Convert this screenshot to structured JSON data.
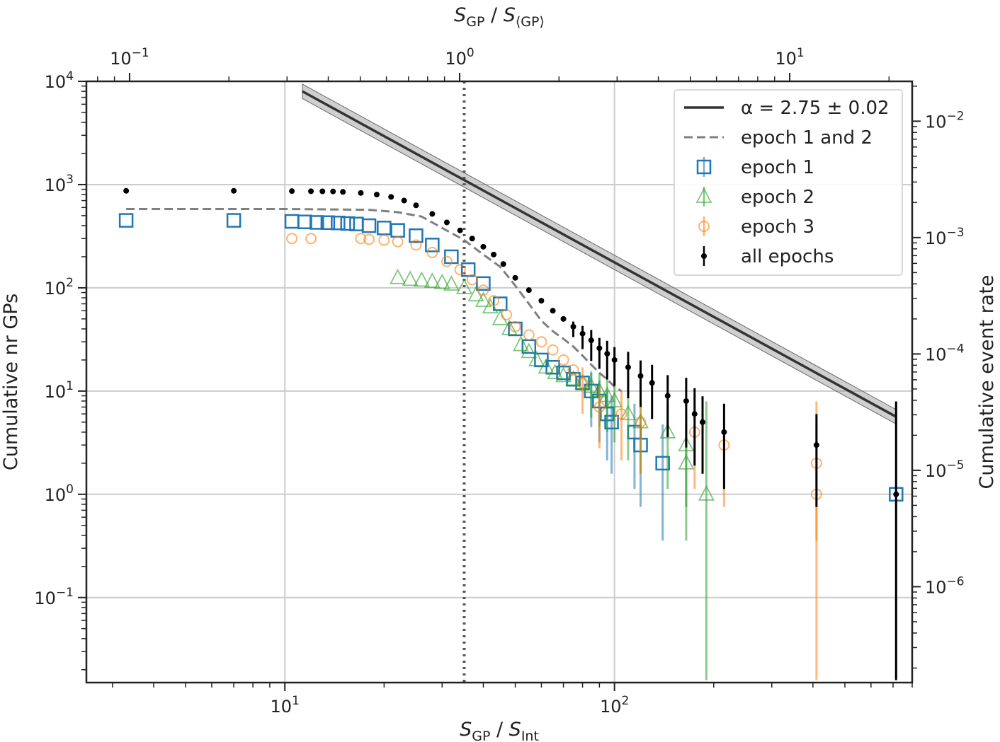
{
  "chart_data": {
    "type": "scatter",
    "scales": {
      "x": "log",
      "y": "log",
      "x_top": "log",
      "y_right": "log"
    },
    "xlabel": "S_GP / S_Int",
    "xlabel_parts": {
      "base": "S",
      "sub1": "GP",
      "sep": " / ",
      "base2": "S",
      "sub2": "Int"
    },
    "ylabel": "Cumulative nr GPs",
    "x2label": "S_GP / S_⟨GP⟩",
    "x2label_parts": {
      "base": "S",
      "sub1": "GP",
      "sep": " / ",
      "base2": "S",
      "sub2": "⟨GP⟩"
    },
    "y2label": "Cumulative event rate",
    "xlim": [
      2.5,
      800
    ],
    "ylim": [
      0.015,
      10000
    ],
    "x2lim": [
      0.074,
      23.5
    ],
    "y2lim": [
      1.5e-07,
      0.022
    ],
    "xticks": [
      {
        "value": 10,
        "base": "10",
        "exp": "1"
      },
      {
        "value": 100,
        "base": "10",
        "exp": "2"
      }
    ],
    "yticks": [
      {
        "value": 0.1,
        "base": "10",
        "exp": "−1"
      },
      {
        "value": 1,
        "base": "10",
        "exp": "0"
      },
      {
        "value": 10,
        "base": "10",
        "exp": "1"
      },
      {
        "value": 100,
        "base": "10",
        "exp": "2"
      },
      {
        "value": 1000,
        "base": "10",
        "exp": "3"
      },
      {
        "value": 10000,
        "base": "10",
        "exp": "4"
      }
    ],
    "x2ticks": [
      {
        "value": 0.1,
        "base": "10",
        "exp": "−1"
      },
      {
        "value": 1,
        "base": "10",
        "exp": "0"
      },
      {
        "value": 10,
        "base": "10",
        "exp": "1"
      }
    ],
    "y2ticks": [
      {
        "value": 1e-06,
        "base": "10",
        "exp": "−6"
      },
      {
        "value": 1e-05,
        "base": "10",
        "exp": "−5"
      },
      {
        "value": 0.0001,
        "base": "10",
        "exp": "−4"
      },
      {
        "value": 0.001,
        "base": "10",
        "exp": "−3"
      },
      {
        "value": 0.01,
        "base": "10",
        "exp": "−2"
      }
    ],
    "grid": true,
    "vline": {
      "x": 35,
      "style": "dotted"
    },
    "legend_position": "top-right",
    "fit": {
      "label": "α = 2.75 ± 0.02",
      "alpha": 2.75,
      "x_range": [
        11.3,
        715
      ],
      "y_start": 8000,
      "band": 0.14
    },
    "series": [
      {
        "name": "epoch 1 and 2",
        "style": "dashed",
        "color": "#7f7f7f",
        "points": [
          [
            3.3,
            580
          ],
          [
            10,
            580
          ],
          [
            18,
            570
          ],
          [
            22,
            540
          ],
          [
            26,
            490
          ],
          [
            30,
            380
          ],
          [
            35,
            290
          ],
          [
            40,
            210
          ],
          [
            45,
            160
          ],
          [
            50,
            105
          ],
          [
            55,
            70
          ],
          [
            60,
            48
          ],
          [
            65,
            38
          ],
          [
            70,
            32
          ],
          [
            75,
            27
          ],
          [
            80,
            22
          ],
          [
            85,
            18
          ],
          [
            90,
            15
          ],
          [
            95,
            13
          ],
          [
            100,
            11
          ],
          [
            105,
            10
          ]
        ]
      },
      {
        "name": "epoch 1",
        "marker": "square",
        "color": "#1f77b4",
        "points": [
          [
            3.3,
            450,
            0
          ],
          [
            7,
            450,
            0
          ],
          [
            10.5,
            440,
            0
          ],
          [
            11.5,
            435,
            0
          ],
          [
            12.5,
            430,
            0
          ],
          [
            13.5,
            428,
            0
          ],
          [
            14.5,
            425,
            0
          ],
          [
            15.5,
            420,
            0
          ],
          [
            16.5,
            415,
            0
          ],
          [
            18,
            400,
            0
          ],
          [
            20,
            380,
            0
          ],
          [
            22,
            360,
            0
          ],
          [
            25,
            320,
            0
          ],
          [
            28,
            260,
            0
          ],
          [
            32,
            200,
            0
          ],
          [
            36,
            150,
            0
          ],
          [
            40,
            110,
            0
          ],
          [
            45,
            70,
            0
          ],
          [
            50,
            40,
            0
          ],
          [
            55,
            27,
            0
          ],
          [
            60,
            20,
            0
          ],
          [
            65,
            17,
            0
          ],
          [
            70,
            15,
            0
          ],
          [
            75,
            13,
            0
          ],
          [
            80,
            12,
            0
          ],
          [
            85,
            10,
            0.35
          ],
          [
            90,
            8,
            0.4
          ],
          [
            95,
            6,
            0.45
          ],
          [
            98,
            5,
            0.5
          ],
          [
            115,
            4,
            0.55
          ],
          [
            120,
            3,
            0.6
          ],
          [
            140,
            2,
            0.75
          ],
          [
            715,
            1,
            1.8
          ]
        ]
      },
      {
        "name": "epoch 2",
        "marker": "triangle",
        "color": "#2ca02c",
        "points": [
          [
            22,
            125,
            0
          ],
          [
            24,
            120,
            0
          ],
          [
            26,
            118,
            0
          ],
          [
            28,
            115,
            0
          ],
          [
            30,
            112,
            0
          ],
          [
            32,
            108,
            0
          ],
          [
            35,
            100,
            0
          ],
          [
            38,
            85,
            0
          ],
          [
            40,
            75,
            0
          ],
          [
            42,
            65,
            0
          ],
          [
            45,
            50,
            0
          ],
          [
            48,
            40,
            0
          ],
          [
            52,
            28,
            0
          ],
          [
            55,
            24,
            0
          ],
          [
            58,
            20,
            0
          ],
          [
            62,
            17,
            0
          ],
          [
            66,
            15,
            0
          ],
          [
            70,
            14,
            0
          ],
          [
            75,
            13,
            0
          ],
          [
            80,
            12,
            0
          ],
          [
            85,
            11,
            0.3
          ],
          [
            90,
            10,
            0.35
          ],
          [
            95,
            9,
            0.35
          ],
          [
            100,
            8,
            0.4
          ],
          [
            110,
            6,
            0.45
          ],
          [
            120,
            5,
            0.5
          ],
          [
            145,
            4,
            0.55
          ],
          [
            165,
            3,
            0.6
          ],
          [
            165,
            2,
            0.75
          ],
          [
            190,
            1,
            1.8
          ]
        ]
      },
      {
        "name": "epoch 3",
        "marker": "circle",
        "color": "#ff7f0e",
        "points": [
          [
            10.5,
            300,
            0
          ],
          [
            12,
            300,
            0
          ],
          [
            17,
            300,
            0
          ],
          [
            18,
            295,
            0
          ],
          [
            20,
            290,
            0
          ],
          [
            22,
            280,
            0
          ],
          [
            25,
            260,
            0
          ],
          [
            28,
            220,
            0
          ],
          [
            31,
            180,
            0
          ],
          [
            34,
            150,
            0
          ],
          [
            37,
            120,
            0
          ],
          [
            40,
            95,
            0
          ],
          [
            43,
            75,
            0
          ],
          [
            47,
            55,
            0
          ],
          [
            50,
            42,
            0
          ],
          [
            55,
            35,
            0
          ],
          [
            60,
            30,
            0
          ],
          [
            65,
            25,
            0
          ],
          [
            70,
            20,
            0
          ],
          [
            75,
            16,
            0
          ],
          [
            80,
            12,
            0.3
          ],
          [
            90,
            7,
            0.4
          ],
          [
            105,
            6,
            0.45
          ],
          [
            120,
            5,
            0.5
          ],
          [
            175,
            4,
            0.55
          ],
          [
            215,
            3,
            0.6
          ],
          [
            410,
            2,
            0.75
          ],
          [
            410,
            1,
            1.8
          ]
        ]
      },
      {
        "name": "all epochs",
        "marker": "dot",
        "color": "#000000",
        "points": [
          [
            3.3,
            870,
            0
          ],
          [
            7,
            870,
            0
          ],
          [
            10.5,
            865,
            0
          ],
          [
            12,
            862,
            0
          ],
          [
            13,
            860,
            0
          ],
          [
            14,
            858,
            0
          ],
          [
            15,
            850,
            0
          ],
          [
            17,
            830,
            0
          ],
          [
            19,
            800,
            0
          ],
          [
            21,
            760,
            0
          ],
          [
            23,
            700,
            0
          ],
          [
            25,
            630,
            0
          ],
          [
            28,
            520,
            0
          ],
          [
            31,
            430,
            0
          ],
          [
            34,
            360,
            0
          ],
          [
            37,
            300,
            0
          ],
          [
            40,
            250,
            0
          ],
          [
            43,
            210,
            0
          ],
          [
            46,
            170,
            0
          ],
          [
            50,
            125,
            0
          ],
          [
            55,
            95,
            0
          ],
          [
            60,
            75,
            0
          ],
          [
            65,
            60,
            0
          ],
          [
            70,
            50,
            0
          ],
          [
            75,
            42,
            0.1
          ],
          [
            80,
            36,
            0.15
          ],
          [
            85,
            31,
            0.2
          ],
          [
            90,
            26,
            0.2
          ],
          [
            95,
            23,
            0.25
          ],
          [
            100,
            20,
            0.25
          ],
          [
            110,
            17,
            0.3
          ],
          [
            120,
            14,
            0.3
          ],
          [
            130,
            12,
            0.35
          ],
          [
            145,
            9,
            0.4
          ],
          [
            165,
            8,
            0.45
          ],
          [
            175,
            6,
            0.5
          ],
          [
            185,
            5,
            0.5
          ],
          [
            215,
            4,
            0.55
          ],
          [
            410,
            3,
            0.6
          ],
          [
            715,
            1,
            1.8
          ]
        ]
      }
    ]
  }
}
